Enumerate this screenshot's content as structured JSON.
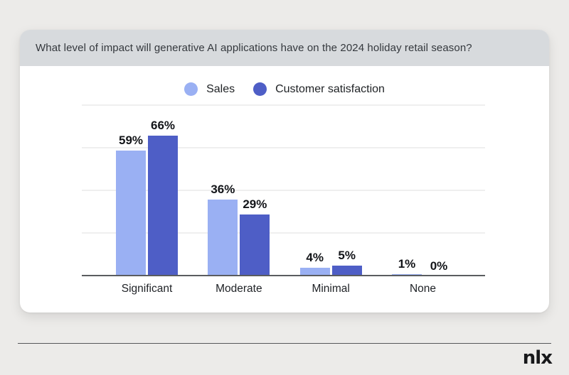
{
  "page": {
    "background_color": "#ECEBE9"
  },
  "header": {
    "banner_color": "#D7DADD"
  },
  "chart_data": {
    "type": "bar",
    "title": "What level of impact will generative AI applications have on the 2024 holiday retail season?",
    "categories": [
      "Significant",
      "Moderate",
      "Minimal",
      "None"
    ],
    "series": [
      {
        "name": "Sales",
        "color": "#9AB0F3",
        "values": [
          59,
          36,
          4,
          1
        ]
      },
      {
        "name": "Customer satisfaction",
        "color": "#4E5EC6",
        "values": [
          66,
          29,
          5,
          0
        ]
      }
    ],
    "value_suffix": "%",
    "ylim": [
      0,
      80
    ],
    "gridline_levels": [
      20,
      40,
      60,
      80
    ],
    "grid": true,
    "legend_position": "top",
    "data_labels": true,
    "axis_color": "#5A5C5F",
    "gridline_color": "#EFEFEF"
  },
  "footer": {
    "logo_text": "nlx"
  }
}
